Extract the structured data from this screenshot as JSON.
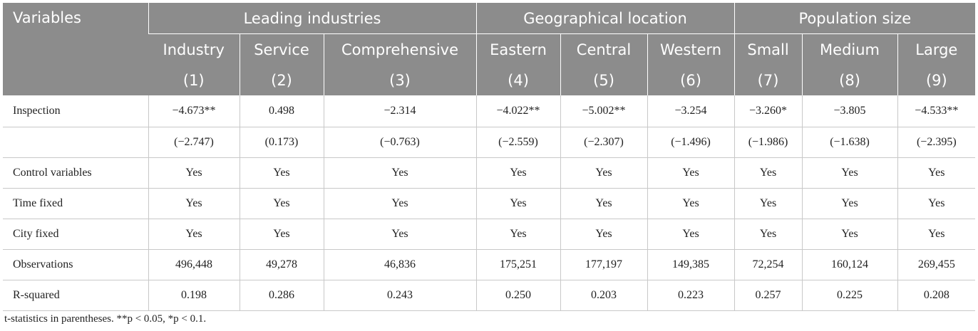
{
  "header": {
    "variables_label": "Variables",
    "groups": [
      "Leading industries",
      "Geographical location",
      "Population size"
    ],
    "columns": [
      "Industry",
      "Service",
      "Comprehensive",
      "Eastern",
      "Central",
      "Western",
      "Small",
      "Medium",
      "Large"
    ],
    "numbers": [
      "(1)",
      "(2)",
      "(3)",
      "(4)",
      "(5)",
      "(6)",
      "(7)",
      "(8)",
      "(9)"
    ]
  },
  "rows": [
    {
      "label": "Inspection",
      "values": [
        "−4.673**",
        "0.498",
        "−2.314",
        "−4.022**",
        "−5.002**",
        "−3.254",
        "−3.260*",
        "−3.805",
        "−4.533**"
      ]
    },
    {
      "label": "",
      "values": [
        "(−2.747)",
        "(0.173)",
        "(−0.763)",
        "(−2.559)",
        "(−2.307)",
        "(−1.496)",
        "(−1.986)",
        "(−1.638)",
        "(−2.395)"
      ]
    },
    {
      "label": "Control variables",
      "values": [
        "Yes",
        "Yes",
        "Yes",
        "Yes",
        "Yes",
        "Yes",
        "Yes",
        "Yes",
        "Yes"
      ]
    },
    {
      "label": "Time fixed",
      "values": [
        "Yes",
        "Yes",
        "Yes",
        "Yes",
        "Yes",
        "Yes",
        "Yes",
        "Yes",
        "Yes"
      ]
    },
    {
      "label": "City fixed",
      "values": [
        "Yes",
        "Yes",
        "Yes",
        "Yes",
        "Yes",
        "Yes",
        "Yes",
        "Yes",
        "Yes"
      ]
    },
    {
      "label": "Observations",
      "values": [
        "496,448",
        "49,278",
        "46,836",
        "175,251",
        "177,197",
        "149,385",
        "72,254",
        "160,124",
        "269,455"
      ]
    },
    {
      "label": "R-squared",
      "values": [
        "0.198",
        "0.286",
        "0.243",
        "0.250",
        "0.203",
        "0.223",
        "0.257",
        "0.225",
        "0.208"
      ]
    }
  ],
  "footnote": "t-statistics in parentheses. **p < 0.05, *p < 0.1."
}
